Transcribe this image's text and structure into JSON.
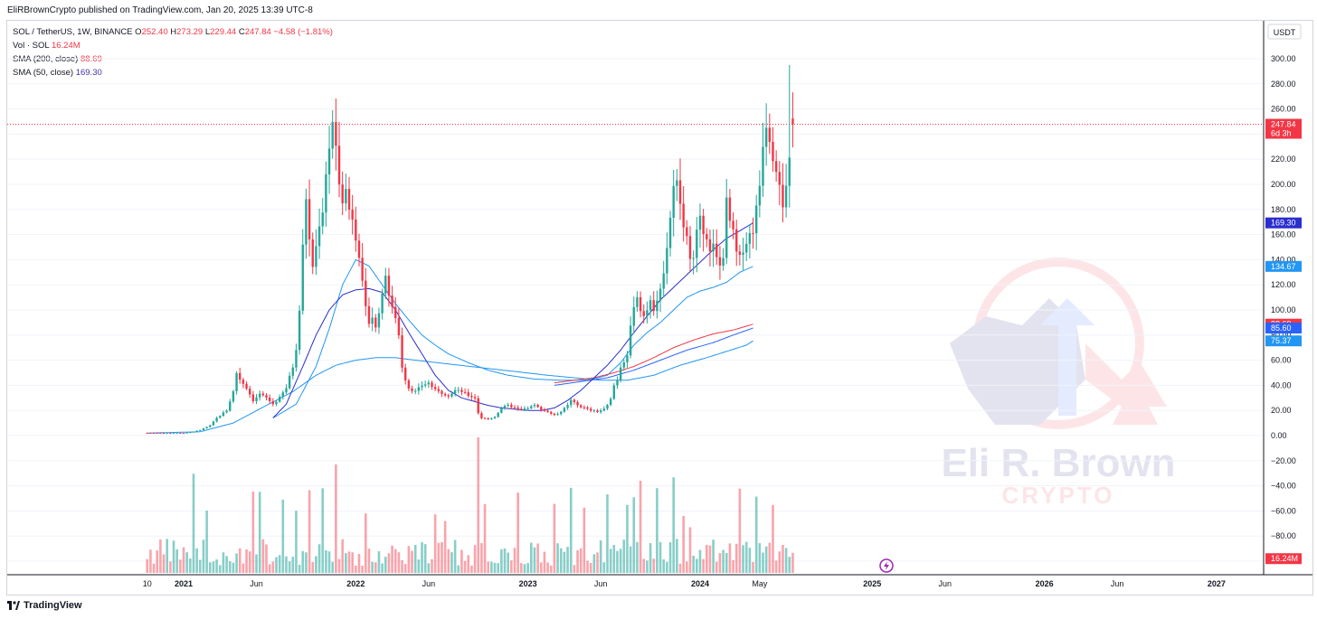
{
  "header": {
    "published": "EliRBrownCrypto published on TradingView.com, Jan 20, 2025 13:39 UTC-8"
  },
  "legend": {
    "symbol": "SOL / TetherUS, 1W, BINANCE",
    "ohlc": {
      "o_label": "O",
      "o": "252.40",
      "h_label": "H",
      "h": "273.29",
      "l_label": "L",
      "l": "229.44",
      "c_label": "C",
      "c": "247.84",
      "chg": "−4.58 (−1.81%)"
    },
    "vol_label": "Vol · SOL",
    "vol_value": "16.24M",
    "sma200_label": "SMA (200, close)",
    "sma200_value": "88.69",
    "sma50_label": "SMA (50, close)",
    "sma50_value": "169.30"
  },
  "price_scale": {
    "currency": "USDT",
    "ticks": [
      "300.00",
      "280.00",
      "260.00",
      "240.00",
      "220.00",
      "200.00",
      "180.00",
      "160.00",
      "140.00",
      "120.00",
      "100.00",
      "80.00",
      "60.00",
      "40.00",
      "20.00",
      "0.00",
      "−20.00",
      "−40.00",
      "−60.00",
      "−80.00",
      "−100.00"
    ],
    "badges": [
      {
        "value": "247.84",
        "sub": "6d 3h",
        "color": "#f23645",
        "price": 247.84
      },
      {
        "value": "169.30",
        "color": "#2a2ecd",
        "price": 169.3
      },
      {
        "value": "134.67",
        "color": "#2196f3",
        "price": 134.67
      },
      {
        "value": "88.69",
        "color": "#f23645",
        "price": 88.69
      },
      {
        "value": "85.60",
        "color": "#2962ff",
        "price": 85.6
      },
      {
        "value": "75.37",
        "color": "#2196f3",
        "price": 75.37
      },
      {
        "value": "16.24M",
        "color": "#f23645",
        "price": -98
      }
    ]
  },
  "time_scale": {
    "labels": [
      {
        "text": "10",
        "bold": false,
        "week": -11
      },
      {
        "text": "2021",
        "bold": true,
        "week": 0
      },
      {
        "text": "Jun",
        "bold": false,
        "week": 22
      },
      {
        "text": "2022",
        "bold": true,
        "week": 52
      },
      {
        "text": "Jun",
        "bold": false,
        "week": 74
      },
      {
        "text": "2023",
        "bold": true,
        "week": 104
      },
      {
        "text": "Jun",
        "bold": false,
        "week": 126
      },
      {
        "text": "2024",
        "bold": true,
        "week": 156
      },
      {
        "text": "May",
        "bold": false,
        "week": 174
      },
      {
        "text": "2025",
        "bold": true,
        "week": 208
      },
      {
        "text": "Jun",
        "bold": false,
        "week": 230
      },
      {
        "text": "2026",
        "bold": true,
        "week": 260
      },
      {
        "text": "Jun",
        "bold": false,
        "week": 282
      },
      {
        "text": "2027",
        "bold": true,
        "week": 312
      }
    ]
  },
  "watermark": {
    "line1": "Eli R. Brown",
    "line2": "CRYPTO"
  },
  "footer": {
    "brand": "TradingView"
  },
  "colors": {
    "up": "#26a69a",
    "down": "#f23645",
    "sma50": "#2a2ecd",
    "sma200": "#f23645",
    "extra_ma": "#2196f3",
    "grid": "#f0f3fa",
    "axis_text": "#131722"
  },
  "chart_data": {
    "type": "candlestick",
    "title": "SOL / TetherUS, 1W, BINANCE",
    "x_unit": "weeks since 2021-01-04",
    "ylim": [
      -100,
      310
    ],
    "close_keypoints": [
      [
        -11,
        2.2
      ],
      [
        -6,
        2.0
      ],
      [
        0,
        2.0
      ],
      [
        3,
        3.0
      ],
      [
        5,
        4.5
      ],
      [
        8,
        8
      ],
      [
        10,
        14
      ],
      [
        13,
        20
      ],
      [
        15,
        35
      ],
      [
        16,
        50
      ],
      [
        17,
        45
      ],
      [
        19,
        38
      ],
      [
        21,
        28
      ],
      [
        23,
        33
      ],
      [
        25,
        30
      ],
      [
        27,
        25
      ],
      [
        29,
        30
      ],
      [
        31,
        38
      ],
      [
        33,
        55
      ],
      [
        34,
        70
      ],
      [
        35,
        100
      ],
      [
        36,
        150
      ],
      [
        37,
        190
      ],
      [
        38,
        155
      ],
      [
        39,
        135
      ],
      [
        40,
        150
      ],
      [
        41,
        170
      ],
      [
        42,
        180
      ],
      [
        43,
        210
      ],
      [
        44,
        230
      ],
      [
        45,
        248
      ],
      [
        46,
        225
      ],
      [
        47,
        205
      ],
      [
        48,
        190
      ],
      [
        49,
        195
      ],
      [
        50,
        180
      ],
      [
        51,
        175
      ],
      [
        53,
        145
      ],
      [
        54,
        120
      ],
      [
        55,
        100
      ],
      [
        56,
        90
      ],
      [
        57,
        95
      ],
      [
        58,
        85
      ],
      [
        59,
        100
      ],
      [
        60,
        110
      ],
      [
        61,
        130
      ],
      [
        62,
        112
      ],
      [
        63,
        100
      ],
      [
        64,
        95
      ],
      [
        65,
        80
      ],
      [
        66,
        55
      ],
      [
        67,
        45
      ],
      [
        68,
        38
      ],
      [
        70,
        35
      ],
      [
        72,
        40
      ],
      [
        74,
        42
      ],
      [
        76,
        36
      ],
      [
        78,
        34
      ],
      [
        80,
        32
      ],
      [
        82,
        36
      ],
      [
        84,
        35
      ],
      [
        86,
        32
      ],
      [
        88,
        30
      ],
      [
        89,
        18
      ],
      [
        90,
        14
      ],
      [
        92,
        13
      ],
      [
        94,
        15
      ],
      [
        96,
        22
      ],
      [
        98,
        24
      ],
      [
        100,
        22
      ],
      [
        102,
        20
      ],
      [
        104,
        22
      ],
      [
        106,
        24
      ],
      [
        108,
        21
      ],
      [
        110,
        19
      ],
      [
        112,
        16
      ],
      [
        114,
        19
      ],
      [
        116,
        24
      ],
      [
        117,
        28
      ],
      [
        119,
        24
      ],
      [
        121,
        22
      ],
      [
        123,
        20
      ],
      [
        125,
        19
      ],
      [
        127,
        21
      ],
      [
        128,
        24
      ],
      [
        129,
        30
      ],
      [
        130,
        40
      ],
      [
        131,
        45
      ],
      [
        132,
        55
      ],
      [
        133,
        60
      ],
      [
        134,
        65
      ],
      [
        135,
        85
      ],
      [
        136,
        105
      ],
      [
        137,
        110
      ],
      [
        138,
        100
      ],
      [
        139,
        98
      ],
      [
        140,
        100
      ],
      [
        141,
        105
      ],
      [
        142,
        102
      ],
      [
        143,
        110
      ],
      [
        144,
        120
      ],
      [
        145,
        130
      ],
      [
        146,
        150
      ],
      [
        147,
        175
      ],
      [
        148,
        195
      ],
      [
        149,
        200
      ],
      [
        150,
        185
      ],
      [
        151,
        165
      ],
      [
        152,
        155
      ],
      [
        153,
        145
      ],
      [
        154,
        140
      ],
      [
        155,
        160
      ],
      [
        156,
        170
      ],
      [
        157,
        165
      ],
      [
        158,
        160
      ],
      [
        159,
        145
      ],
      [
        160,
        150
      ],
      [
        161,
        140
      ],
      [
        162,
        135
      ],
      [
        163,
        145
      ],
      [
        164,
        185
      ],
      [
        165,
        170
      ],
      [
        166,
        160
      ],
      [
        167,
        145
      ],
      [
        168,
        140
      ],
      [
        169,
        150
      ],
      [
        170,
        155
      ],
      [
        171,
        160
      ],
      [
        172,
        165
      ],
      [
        173,
        180
      ],
      [
        174,
        200
      ],
      [
        175,
        235
      ],
      [
        176,
        250
      ],
      [
        177,
        240
      ],
      [
        178,
        225
      ],
      [
        179,
        215
      ],
      [
        180,
        205
      ],
      [
        181,
        185
      ],
      [
        182,
        195
      ],
      [
        183,
        215
      ],
      [
        184,
        247.84
      ]
    ],
    "sma50": [
      [
        -11,
        null
      ],
      [
        27,
        14
      ],
      [
        31,
        25
      ],
      [
        36,
        55
      ],
      [
        40,
        80
      ],
      [
        44,
        100
      ],
      [
        48,
        112
      ],
      [
        52,
        116
      ],
      [
        56,
        117
      ],
      [
        60,
        114
      ],
      [
        64,
        100
      ],
      [
        68,
        82
      ],
      [
        72,
        65
      ],
      [
        76,
        48
      ],
      [
        80,
        36
      ],
      [
        84,
        30
      ],
      [
        88,
        27
      ],
      [
        92,
        24
      ],
      [
        96,
        22
      ],
      [
        100,
        21
      ],
      [
        104,
        20
      ],
      [
        108,
        20
      ],
      [
        112,
        22
      ],
      [
        116,
        28
      ],
      [
        120,
        36
      ],
      [
        124,
        46
      ],
      [
        128,
        56
      ],
      [
        132,
        68
      ],
      [
        136,
        82
      ],
      [
        140,
        95
      ],
      [
        144,
        108
      ],
      [
        148,
        118
      ],
      [
        152,
        128
      ],
      [
        156,
        138
      ],
      [
        160,
        148
      ],
      [
        164,
        157
      ],
      [
        168,
        163
      ],
      [
        172,
        169.3
      ]
    ],
    "sma200": [
      [
        112,
        42
      ],
      [
        118,
        44
      ],
      [
        124,
        46
      ],
      [
        130,
        50
      ],
      [
        136,
        55
      ],
      [
        142,
        62
      ],
      [
        148,
        70
      ],
      [
        154,
        76
      ],
      [
        160,
        81
      ],
      [
        166,
        84
      ],
      [
        172,
        88.69
      ]
    ],
    "blue_ma_slow": [
      [
        -11,
        2
      ],
      [
        5,
        3
      ],
      [
        15,
        10
      ],
      [
        25,
        24
      ],
      [
        33,
        35
      ],
      [
        40,
        48
      ],
      [
        46,
        56
      ],
      [
        52,
        60
      ],
      [
        58,
        62
      ],
      [
        64,
        62
      ],
      [
        70,
        60
      ],
      [
        80,
        57
      ],
      [
        90,
        54
      ],
      [
        100,
        51
      ],
      [
        110,
        48
      ],
      [
        118,
        46
      ],
      [
        126,
        44
      ],
      [
        134,
        44
      ],
      [
        142,
        48
      ],
      [
        150,
        56
      ],
      [
        158,
        62
      ],
      [
        164,
        67
      ],
      [
        170,
        72
      ],
      [
        172,
        75.37
      ]
    ],
    "blue_ma_mid": [
      [
        27,
        14
      ],
      [
        34,
        25
      ],
      [
        40,
        55
      ],
      [
        44,
        85
      ],
      [
        48,
        120
      ],
      [
        52,
        140
      ],
      [
        56,
        135
      ],
      [
        60,
        120
      ],
      [
        64,
        105
      ],
      [
        68,
        92
      ],
      [
        72,
        80
      ],
      [
        76,
        72
      ],
      [
        80,
        65
      ],
      [
        86,
        58
      ],
      [
        92,
        52
      ],
      [
        98,
        48
      ],
      [
        106,
        45
      ],
      [
        114,
        44
      ],
      [
        122,
        44
      ],
      [
        128,
        48
      ],
      [
        132,
        58
      ],
      [
        136,
        72
      ],
      [
        140,
        82
      ],
      [
        144,
        90
      ],
      [
        148,
        100
      ],
      [
        152,
        110
      ],
      [
        156,
        115
      ],
      [
        160,
        118
      ],
      [
        164,
        122
      ],
      [
        168,
        130
      ],
      [
        172,
        134.67
      ]
    ],
    "blue_ma_200b": [
      [
        112,
        40
      ],
      [
        120,
        43
      ],
      [
        128,
        46
      ],
      [
        136,
        52
      ],
      [
        144,
        60
      ],
      [
        152,
        68
      ],
      [
        160,
        74
      ],
      [
        166,
        80
      ],
      [
        172,
        85.6
      ]
    ]
  }
}
